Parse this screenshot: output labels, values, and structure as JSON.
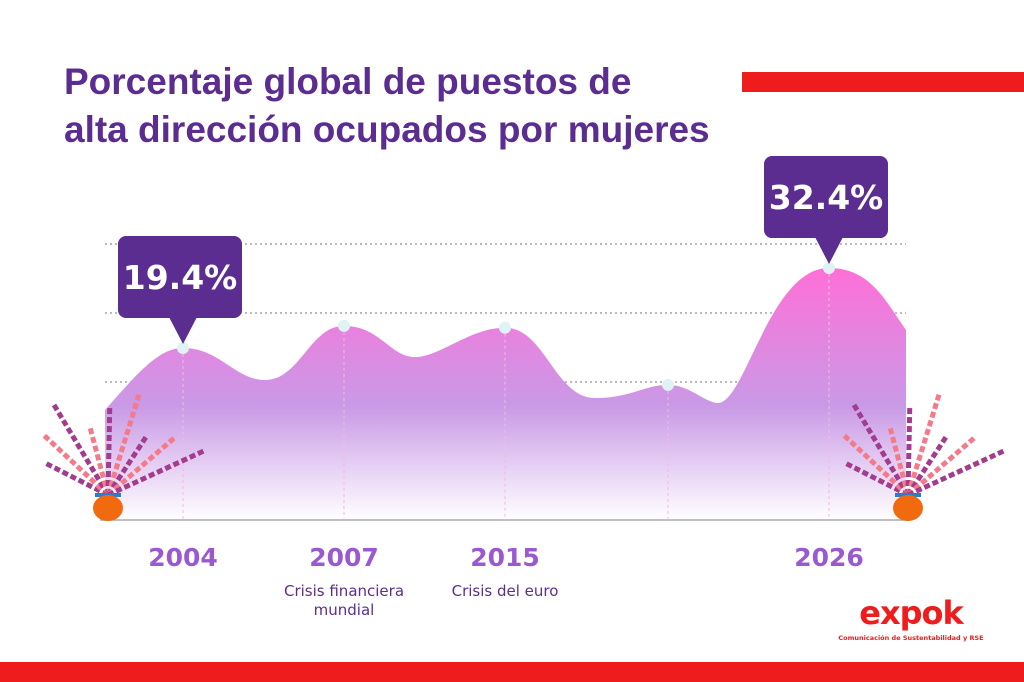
{
  "title_lines": [
    "Porcentaje global de puestos de",
    "alta dirección ocupados por mujeres"
  ],
  "chart_data": {
    "type": "area",
    "title": "Porcentaje global de puestos de alta dirección ocupados por mujeres",
    "categories": [
      "2004",
      "2007",
      "2015",
      "",
      "2026"
    ],
    "annotations": [
      "",
      "Crisis financiera mundial",
      "Crisis del euro",
      "",
      ""
    ],
    "values": [
      19.4,
      23.0,
      22.7,
      13.4,
      32.4
    ],
    "data_labels": [
      "19.4%",
      "",
      "",
      "",
      "32.4%"
    ],
    "grid": true,
    "colors": {
      "area_top": "#ff6fd8",
      "area_bottom": "#ffffff",
      "callout": "#5c2d91",
      "point": "#dff3f5",
      "tick_label": "#9b59d0"
    }
  },
  "logo": {
    "name": "expok",
    "tagline": "Comunicación de Sustentabilidad y RSE"
  },
  "colors": {
    "title": "#5c2d91",
    "accent": "#ee1c1c"
  }
}
